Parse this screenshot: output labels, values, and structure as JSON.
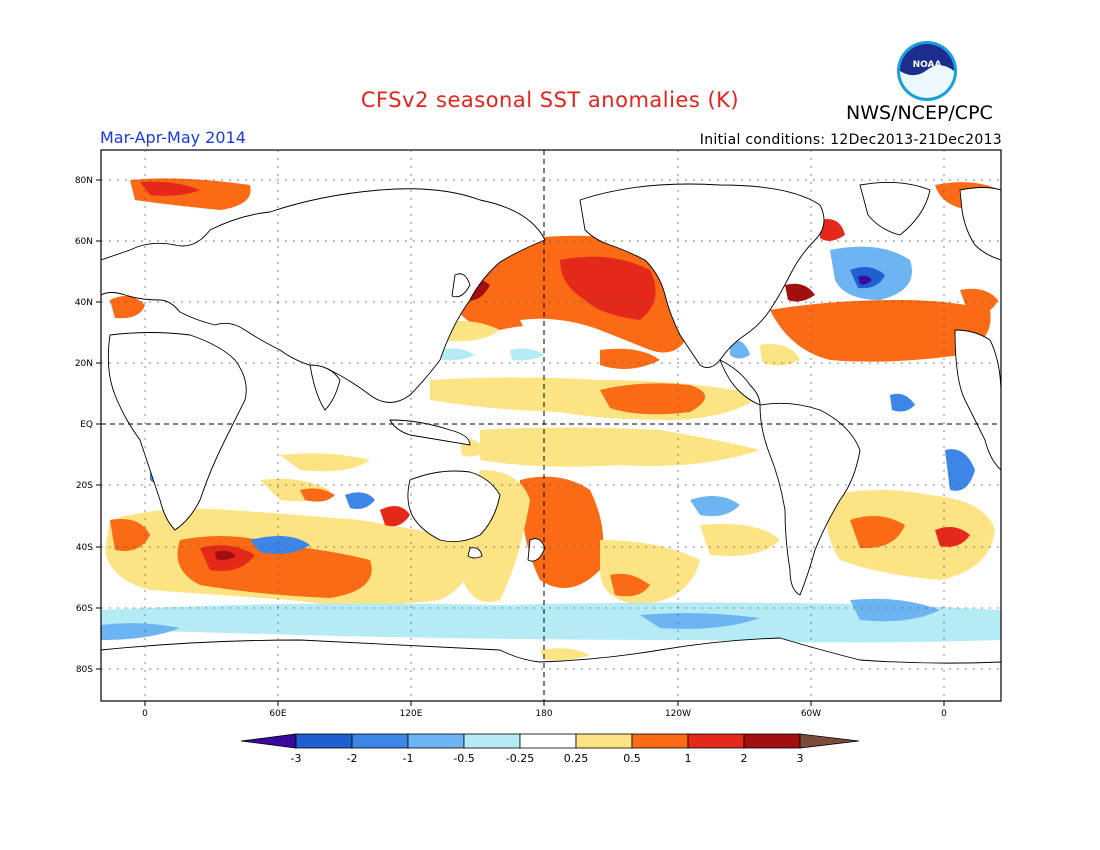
{
  "header": {
    "title": "CFSv2 seasonal SST anomalies (K)",
    "agency": "NWS/NCEP/CPC",
    "period": "Mar-Apr-May 2014",
    "initial_conditions": "Initial conditions: 12Dec2013-21Dec2013",
    "logo_text": "NOAA"
  },
  "map": {
    "lat_labels": [
      "80N",
      "60N",
      "40N",
      "20N",
      "EQ",
      "20S",
      "40S",
      "60S",
      "80S"
    ],
    "lon_labels": [
      "0",
      "60E",
      "120E",
      "180",
      "120W",
      "60W",
      "0"
    ],
    "projection": "cylindrical equidistant",
    "grid": "dotted",
    "reference_lines": [
      "EQ",
      "180"
    ]
  },
  "legend": {
    "unit": "K",
    "tick_labels": [
      "-3",
      "-2",
      "-1",
      "-0.5",
      "-0.25",
      "0.25",
      "0.5",
      "1",
      "2",
      "3"
    ],
    "colors": {
      "below_-3": "#3a0a9e",
      "-3_to_-2": "#1f5fd0",
      "-2_to_-1": "#3d85e6",
      "-1_to_-0.5": "#6db4f2",
      "-0.5_to_-0.25": "#b5ebf5",
      "-0.25_to_0.25": "#ffffff",
      "0.25_to_0.5": "#fce383",
      "0.5_to_1": "#fb6a14",
      "1_to_2": "#e4291a",
      "2_to_3": "#a20f0f",
      "above_3": "#7a4a3a"
    }
  },
  "anomalies": [
    {
      "name": "north-pacific-warm",
      "level": "0.5_to_1",
      "center": [
        "180",
        "45N"
      ]
    },
    {
      "name": "north-pacific-core",
      "level": "1_to_2",
      "center": [
        "160W",
        "43N"
      ]
    },
    {
      "name": "equatorial-pacific-band",
      "level": "0.25_to_0.5",
      "center": [
        "180",
        "10N"
      ]
    },
    {
      "name": "south-pacific-warm",
      "level": "0.5_to_1",
      "center": [
        "165W",
        "25S"
      ]
    },
    {
      "name": "north-atlantic-cold",
      "level": "-2_to_-1",
      "center": [
        "35W",
        "45N"
      ]
    },
    {
      "name": "subtropical-atlantic-warm",
      "level": "0.5_to_1",
      "center": [
        "50W",
        "30N"
      ]
    },
    {
      "name": "southern-indian-warm",
      "level": "1_to_2",
      "center": [
        "50E",
        "45S"
      ]
    },
    {
      "name": "southern-ocean-cold",
      "level": "-0.5_to_-0.25",
      "center": [
        "120W",
        "65S"
      ]
    }
  ]
}
